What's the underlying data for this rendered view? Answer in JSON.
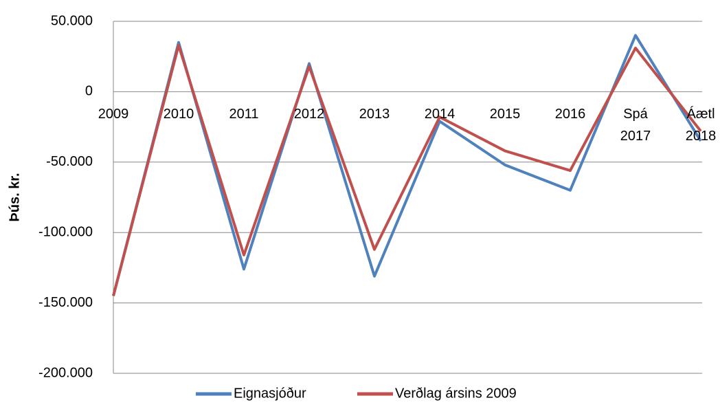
{
  "chart_data": {
    "type": "line",
    "y_label": "Þús. kr.",
    "categories": [
      "2009",
      "2010",
      "2011",
      "2012",
      "2013",
      "2014",
      "2015",
      "2016",
      "Spá 2017",
      "Áætl 2018"
    ],
    "series": [
      {
        "name": "Eignasjóður",
        "color": "#4f81bd",
        "values": [
          -145000,
          35000,
          -126000,
          20000,
          -131000,
          -21000,
          -52000,
          -70000,
          40000,
          -35000
        ]
      },
      {
        "name": "Verðlag ársins 2009",
        "color": "#c0504d",
        "values": [
          -145000,
          33000,
          -116000,
          18000,
          -112000,
          -18000,
          -42000,
          -56000,
          31000,
          -28000
        ]
      }
    ],
    "ylim": [
      -200000,
      50000
    ],
    "yticks": [
      {
        "value": -200000,
        "label": "-200.000"
      },
      {
        "value": -150000,
        "label": "-150.000"
      },
      {
        "value": -100000,
        "label": "-100.000"
      },
      {
        "value": -50000,
        "label": "-50.000"
      },
      0,
      {
        "value": 50000,
        "label": "50.000"
      }
    ],
    "grid": true,
    "legend": "bottom"
  }
}
